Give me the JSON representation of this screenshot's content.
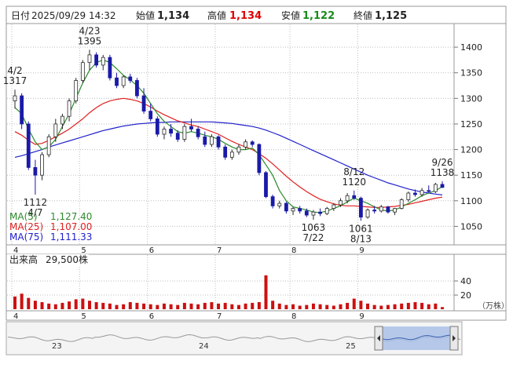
{
  "header": {
    "date_label": "日付",
    "datetime": "2025/09/29 14:32",
    "open_label": "始値",
    "open_value": "1,134",
    "high_label": "高値",
    "high_value": "1,134",
    "low_label": "安値",
    "low_value": "1,122",
    "close_label": "終値",
    "close_value": "1,125"
  },
  "colors": {
    "up": "#2a2a2a",
    "down": "#1a1aa8",
    "ma5": "#2b8a2b",
    "ma25": "#e02020",
    "ma75": "#2020cc",
    "volume": "#cc1010",
    "price_red": "#e00000",
    "price_green": "#1a8a1a",
    "grid": "#bdbdbd",
    "nav_fill": "#a9bfe6"
  },
  "chart_data": [
    {
      "type": "candlestick",
      "ylim": [
        1020,
        1440
      ],
      "yticks": [
        1050,
        1100,
        1150,
        1200,
        1250,
        1300,
        1350,
        1400
      ],
      "month_labels": [
        "4",
        "5",
        "6",
        "7",
        "8",
        "9"
      ],
      "candles": [
        [
          1295,
          1317,
          1280,
          1305
        ],
        [
          1305,
          1310,
          1240,
          1250
        ],
        [
          1250,
          1255,
          1160,
          1165
        ],
        [
          1165,
          1180,
          1112,
          1150
        ],
        [
          1150,
          1195,
          1140,
          1190
        ],
        [
          1190,
          1230,
          1185,
          1225
        ],
        [
          1225,
          1260,
          1215,
          1250
        ],
        [
          1250,
          1270,
          1240,
          1265
        ],
        [
          1265,
          1300,
          1255,
          1295
        ],
        [
          1295,
          1340,
          1290,
          1335
        ],
        [
          1335,
          1375,
          1330,
          1370
        ],
        [
          1370,
          1395,
          1355,
          1385
        ],
        [
          1385,
          1390,
          1360,
          1365
        ],
        [
          1365,
          1385,
          1355,
          1380
        ],
        [
          1380,
          1385,
          1335,
          1340
        ],
        [
          1340,
          1350,
          1320,
          1325
        ],
        [
          1325,
          1345,
          1320,
          1342
        ],
        [
          1342,
          1348,
          1330,
          1335
        ],
        [
          1335,
          1340,
          1300,
          1305
        ],
        [
          1305,
          1320,
          1270,
          1275
        ],
        [
          1275,
          1290,
          1255,
          1260
        ],
        [
          1260,
          1265,
          1225,
          1230
        ],
        [
          1230,
          1245,
          1220,
          1240
        ],
        [
          1240,
          1250,
          1225,
          1232
        ],
        [
          1232,
          1238,
          1215,
          1220
        ],
        [
          1220,
          1250,
          1215,
          1245
        ],
        [
          1245,
          1260,
          1235,
          1240
        ],
        [
          1240,
          1245,
          1220,
          1225
        ],
        [
          1225,
          1235,
          1205,
          1210
        ],
        [
          1210,
          1230,
          1205,
          1225
        ],
        [
          1225,
          1228,
          1200,
          1205
        ],
        [
          1205,
          1210,
          1180,
          1185
        ],
        [
          1185,
          1200,
          1180,
          1195
        ],
        [
          1195,
          1210,
          1190,
          1205
        ],
        [
          1205,
          1220,
          1200,
          1215
        ],
        [
          1215,
          1218,
          1205,
          1210
        ],
        [
          1210,
          1212,
          1150,
          1155
        ],
        [
          1155,
          1158,
          1105,
          1108
        ],
        [
          1108,
          1112,
          1085,
          1090
        ],
        [
          1090,
          1100,
          1085,
          1095
        ],
        [
          1095,
          1098,
          1075,
          1080
        ],
        [
          1080,
          1088,
          1072,
          1085
        ],
        [
          1085,
          1090,
          1075,
          1080
        ],
        [
          1080,
          1085,
          1068,
          1072
        ],
        [
          1072,
          1082,
          1063,
          1078
        ],
        [
          1078,
          1085,
          1070,
          1075
        ],
        [
          1075,
          1088,
          1072,
          1085
        ],
        [
          1085,
          1095,
          1080,
          1092
        ],
        [
          1092,
          1105,
          1088,
          1100
        ],
        [
          1100,
          1115,
          1095,
          1110
        ],
        [
          1110,
          1120,
          1102,
          1105
        ],
        [
          1105,
          1108,
          1061,
          1068
        ],
        [
          1068,
          1085,
          1065,
          1082
        ],
        [
          1082,
          1090,
          1075,
          1080
        ],
        [
          1080,
          1092,
          1077,
          1088
        ],
        [
          1088,
          1090,
          1075,
          1078
        ],
        [
          1078,
          1086,
          1072,
          1085
        ],
        [
          1085,
          1105,
          1083,
          1102
        ],
        [
          1102,
          1118,
          1098,
          1115
        ],
        [
          1115,
          1122,
          1108,
          1112
        ],
        [
          1112,
          1125,
          1108,
          1120
        ],
        [
          1120,
          1130,
          1115,
          1118
        ],
        [
          1118,
          1135,
          1115,
          1132
        ],
        [
          1132,
          1138,
          1125,
          1126
        ]
      ],
      "ma5": [
        1282,
        1270,
        1240,
        1215,
        1200,
        1205,
        1220,
        1245,
        1270,
        1300,
        1330,
        1355,
        1370,
        1375,
        1370,
        1358,
        1345,
        1336,
        1325,
        1310,
        1290,
        1270,
        1255,
        1245,
        1235,
        1232,
        1235,
        1232,
        1228,
        1225,
        1220,
        1212,
        1205,
        1200,
        1200,
        1203,
        1190,
        1170,
        1150,
        1120,
        1100,
        1088,
        1085,
        1082,
        1078,
        1077,
        1080,
        1085,
        1090,
        1098,
        1105,
        1100,
        1095,
        1088,
        1082,
        1080,
        1082,
        1088,
        1095,
        1102,
        1110,
        1115,
        1120,
        1127.4
      ],
      "ma25": [
        1235,
        1228,
        1218,
        1210,
        1212,
        1218,
        1225,
        1232,
        1240,
        1250,
        1260,
        1272,
        1282,
        1290,
        1295,
        1298,
        1300,
        1298,
        1295,
        1290,
        1283,
        1275,
        1268,
        1262,
        1256,
        1252,
        1248,
        1245,
        1240,
        1235,
        1230,
        1223,
        1216,
        1210,
        1205,
        1200,
        1192,
        1183,
        1172,
        1160,
        1148,
        1137,
        1127,
        1118,
        1110,
        1103,
        1098,
        1094,
        1091,
        1090,
        1090,
        1089,
        1088,
        1087,
        1087,
        1088,
        1089,
        1091,
        1093,
        1096,
        1099,
        1102,
        1105,
        1107
      ],
      "ma75": [
        1185,
        1188,
        1192,
        1196,
        1200,
        1205,
        1209,
        1213,
        1217,
        1221,
        1225,
        1229,
        1233,
        1237,
        1240,
        1243,
        1246,
        1248,
        1250,
        1251,
        1252,
        1253,
        1253,
        1254,
        1254,
        1254,
        1254,
        1254,
        1254,
        1254,
        1253,
        1252,
        1251,
        1249,
        1247,
        1245,
        1242,
        1238,
        1233,
        1228,
        1222,
        1216,
        1210,
        1204,
        1198,
        1192,
        1186,
        1180,
        1174,
        1168,
        1162,
        1156,
        1150,
        1145,
        1140,
        1135,
        1131,
        1127,
        1123,
        1120,
        1117,
        1115,
        1113,
        1111.33
      ],
      "annotations": [
        {
          "index": 0,
          "top": "4/2",
          "bottom": "1317",
          "side": "above"
        },
        {
          "index": 11,
          "top": "4/23",
          "bottom": "1395",
          "side": "above"
        },
        {
          "index": 3,
          "top": "1112",
          "bottom": "4/7",
          "side": "below"
        },
        {
          "index": 44,
          "top": "1063",
          "bottom": "7/22",
          "side": "below"
        },
        {
          "index": 50,
          "top": "8/12",
          "bottom": "1120",
          "side": "above"
        },
        {
          "index": 51,
          "top": "1061",
          "bottom": "8/13",
          "side": "below"
        },
        {
          "index": 63,
          "top": "9/26",
          "bottom": "1138",
          "side": "above"
        }
      ],
      "legend": [
        {
          "label": "MA(5)",
          "value": "1,127.40"
        },
        {
          "label": "MA(25)",
          "value": "1,107.00"
        },
        {
          "label": "MA(75)",
          "value": "1,111.33"
        }
      ]
    },
    {
      "type": "bar",
      "title": "出来高",
      "current_value": "29,500株",
      "unit": "（万株）",
      "ylim": [
        0,
        60
      ],
      "yticks": [
        20,
        40
      ],
      "values": [
        18,
        22,
        16,
        12,
        10,
        8,
        7,
        9,
        11,
        14,
        15,
        12,
        10,
        9,
        8,
        6,
        7,
        10,
        9,
        8,
        7,
        6,
        8,
        7,
        6,
        9,
        8,
        7,
        9,
        10,
        8,
        9,
        7,
        6,
        8,
        9,
        10,
        48,
        12,
        8,
        6,
        7,
        5,
        6,
        8,
        7,
        6,
        5,
        7,
        9,
        15,
        12,
        8,
        6,
        5,
        6,
        7,
        8,
        9,
        10,
        9,
        7,
        8,
        3
      ]
    },
    {
      "type": "area",
      "labels": [
        "23",
        "24",
        "25"
      ]
    }
  ]
}
